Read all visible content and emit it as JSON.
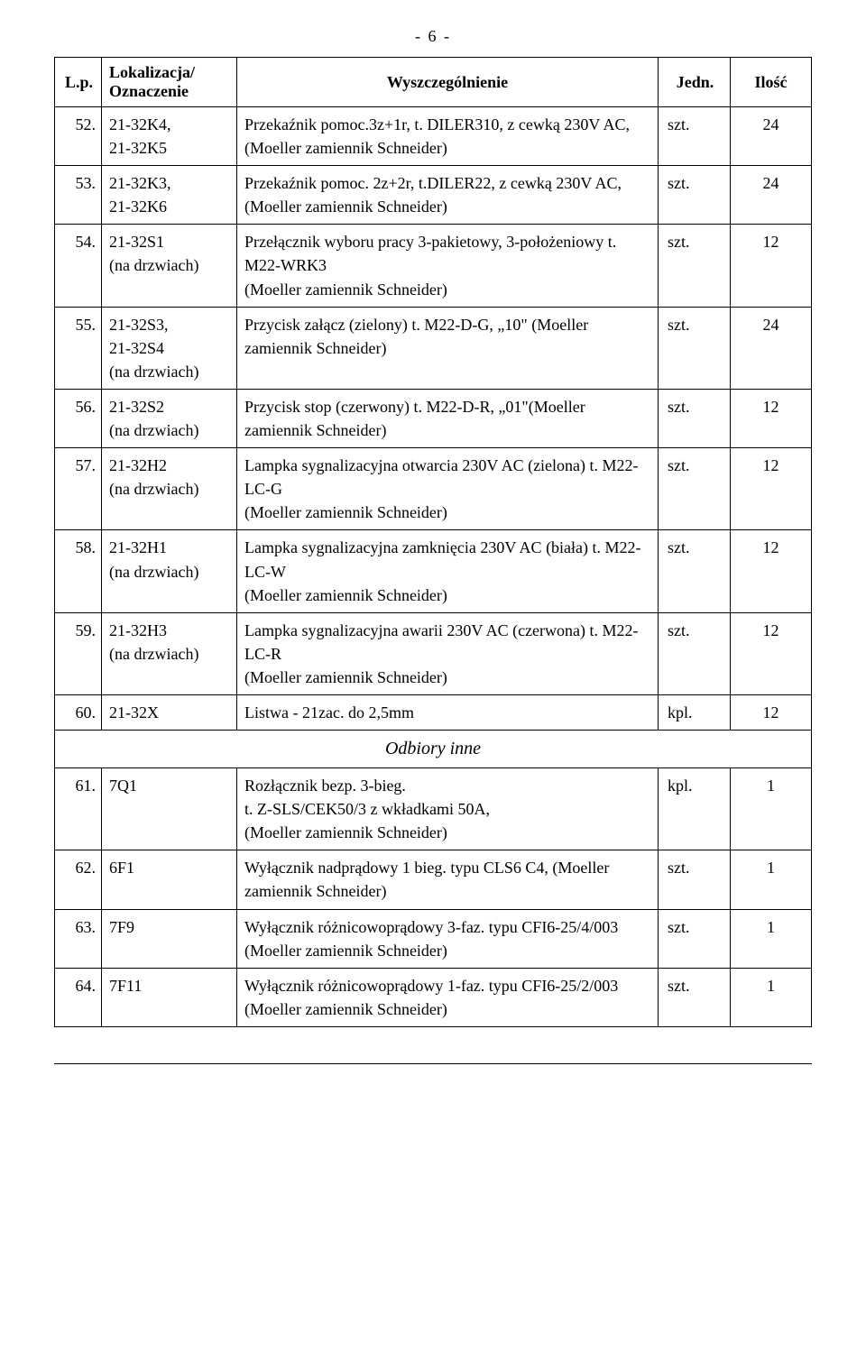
{
  "page_number": "-  6  -",
  "headers": {
    "lp": "L.p.",
    "loc_line1": "Lokalizacja/",
    "loc_line2": "Oznaczenie",
    "spec": "Wyszczególnienie",
    "unit": "Jedn.",
    "qty": "Ilość"
  },
  "rows": [
    {
      "lp": "52.",
      "loc": "21-32K4,\n21-32K5",
      "spec": "Przekaźnik pomoc.3z+1r, t. DILER310, z cewką 230V AC,\n(Moeller zamiennik Schneider)",
      "unit": "szt.",
      "qty": "24"
    },
    {
      "lp": "53.",
      "loc": "21-32K3,\n21-32K6",
      "spec": "Przekaźnik pomoc. 2z+2r, t.DILER22, z cewką 230V AC,\n(Moeller zamiennik Schneider)",
      "unit": "szt.",
      "qty": "24"
    },
    {
      "lp": "54.",
      "loc": "21-32S1\n(na drzwiach)",
      "spec": "Przełącznik wyboru pracy 3-pakietowy, 3-położeniowy t. M22-WRK3\n(Moeller zamiennik Schneider)",
      "unit": "szt.",
      "qty": "12"
    },
    {
      "lp": "55.",
      "loc": "21-32S3,\n21-32S4\n(na drzwiach)",
      "spec": "Przycisk załącz (zielony) t. M22-D-G, „10\" (Moeller zamiennik Schneider)",
      "unit": "szt.",
      "qty": "24"
    },
    {
      "lp": "56.",
      "loc": "21-32S2\n(na drzwiach)",
      "spec": "Przycisk stop (czerwony) t. M22-D-R, „01\"(Moeller zamiennik Schneider)",
      "unit": "szt.",
      "qty": "12"
    },
    {
      "lp": "57.",
      "loc": "21-32H2\n(na drzwiach)",
      "spec": "Lampka sygnalizacyjna otwarcia 230V AC (zielona) t. M22-LC-G\n(Moeller zamiennik Schneider)",
      "unit": "szt.",
      "qty": "12"
    },
    {
      "lp": "58.",
      "loc": "21-32H1\n(na drzwiach)",
      "spec": "Lampka sygnalizacyjna zamknięcia 230V AC (biała) t. M22-LC-W\n(Moeller zamiennik Schneider)",
      "unit": "szt.",
      "qty": "12"
    },
    {
      "lp": "59.",
      "loc": "21-32H3\n(na drzwiach)",
      "spec": "Lampka sygnalizacyjna awarii 230V AC (czerwona) t. M22-LC-R\n(Moeller zamiennik Schneider)",
      "unit": "szt.",
      "qty": "12"
    },
    {
      "lp": "60.",
      "loc": "21-32X",
      "spec": "Listwa  - 21zac. do 2,5mm",
      "unit": "kpl.",
      "qty": "12"
    },
    {
      "section": "Odbiory inne"
    },
    {
      "lp": "61.",
      "loc": "7Q1",
      "spec": "Rozłącznik bezp. 3-bieg.\nt. Z-SLS/CEK50/3 z wkładkami 50A,\n(Moeller zamiennik Schneider)",
      "unit": "kpl.",
      "qty": "1"
    },
    {
      "lp": "62.",
      "loc": "6F1",
      "spec": "Wyłącznik nadprądowy 1 bieg. typu  CLS6 C4, (Moeller zamiennik Schneider)",
      "unit": "szt.",
      "qty": "1"
    },
    {
      "lp": "63.",
      "loc": "7F9",
      "spec": "Wyłącznik różnicowoprądowy 3-faz. typu CFI6-25/4/003\n(Moeller zamiennik Schneider)",
      "unit": "szt.",
      "qty": "1"
    },
    {
      "lp": "64.",
      "loc": "7F11",
      "spec": "Wyłącznik różnicowoprądowy 1-faz. typu CFI6-25/2/003\n(Moeller zamiennik Schneider)",
      "unit": "szt.",
      "qty": "1"
    }
  ]
}
